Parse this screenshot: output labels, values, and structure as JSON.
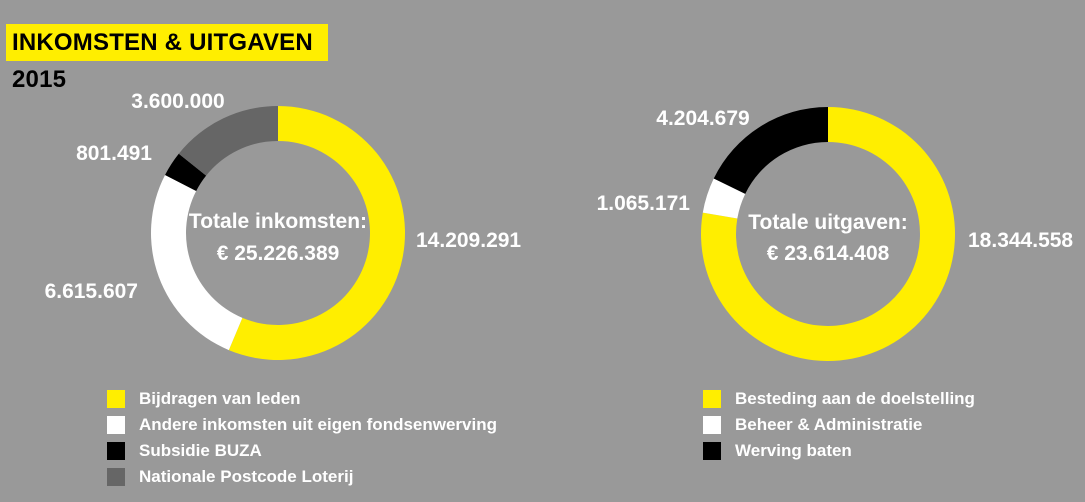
{
  "title": "INKOMSTEN & UITGAVEN 2015",
  "colors": {
    "yellow": "#ffee00",
    "white": "#ffffff",
    "black": "#000000",
    "darkgray": "#666666",
    "background": "#999999"
  },
  "chart_data": [
    {
      "type": "pie",
      "style": "donut",
      "center_label": [
        "Totale inkomsten:",
        "€ 25.226.389"
      ],
      "total": 25226389,
      "slices": [
        {
          "name": "Bijdragen van leden",
          "value": 14209291,
          "label": "14.209.291",
          "color": "#ffee00"
        },
        {
          "name": "Andere inkomsten uit eigen fondsenwerving",
          "value": 6615607,
          "label": "6.615.607",
          "color": "#ffffff"
        },
        {
          "name": "Subsidie BUZA",
          "value": 801491,
          "label": "801.491",
          "color": "#000000"
        },
        {
          "name": "Nationale Postcode Loterij",
          "value": 3600000,
          "label": "3.600.000",
          "color": "#666666"
        }
      ]
    },
    {
      "type": "pie",
      "style": "donut",
      "center_label": [
        "Totale uitgaven:",
        "€ 23.614.408"
      ],
      "total": 23614408,
      "slices": [
        {
          "name": "Besteding aan de doelstelling",
          "value": 18344558,
          "label": "18.344.558",
          "color": "#ffee00"
        },
        {
          "name": "Beheer & Administratie",
          "value": 1065171,
          "label": "1.065.171",
          "color": "#ffffff"
        },
        {
          "name": "Werving baten",
          "value": 4204679,
          "label": "4.204.679",
          "color": "#000000"
        }
      ]
    }
  ]
}
